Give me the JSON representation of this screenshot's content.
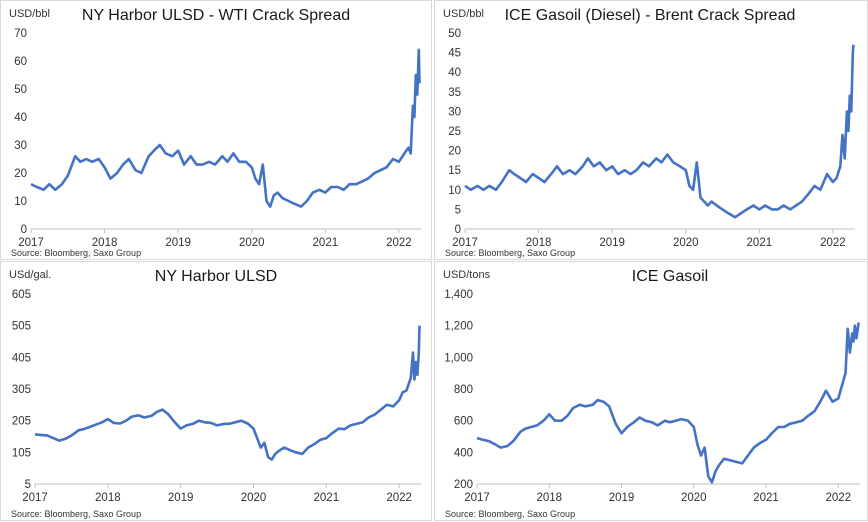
{
  "chart_data": [
    {
      "type": "line",
      "title": "NY Harbor ULSD - WTI Crack Spread",
      "unit_label": "USD/bbl",
      "source": "Source: Bloomberg, Saxo Group",
      "ylim": [
        0,
        70
      ],
      "yticks": [
        "0",
        "10",
        "20",
        "30",
        "40",
        "50",
        "60",
        "70"
      ],
      "xlim": [
        2017.0,
        2022.3
      ],
      "xticks": [
        "2017",
        "2018",
        "2019",
        "2020",
        "2021",
        "2022"
      ],
      "color": "#4472c4",
      "grid": false,
      "series": [
        {
          "x": [
            2017.0,
            2017.08,
            2017.17,
            2017.25,
            2017.33,
            2017.42,
            2017.5,
            2017.6,
            2017.67,
            2017.75,
            2017.83,
            2017.92,
            2018.0,
            2018.08,
            2018.17,
            2018.25,
            2018.33,
            2018.42,
            2018.5,
            2018.6,
            2018.67,
            2018.75,
            2018.83,
            2018.92,
            2019.0,
            2019.08,
            2019.17,
            2019.25,
            2019.33,
            2019.42,
            2019.5,
            2019.6,
            2019.67,
            2019.75,
            2019.83,
            2019.92,
            2020.0,
            2020.05,
            2020.1,
            2020.15,
            2020.2,
            2020.25,
            2020.3,
            2020.35,
            2020.42,
            2020.5,
            2020.58,
            2020.67,
            2020.75,
            2020.83,
            2020.92,
            2021.0,
            2021.08,
            2021.17,
            2021.25,
            2021.33,
            2021.42,
            2021.5,
            2021.58,
            2021.67,
            2021.75,
            2021.83,
            2021.92,
            2022.0,
            2022.05,
            2022.1,
            2022.13,
            2022.16,
            2022.19,
            2022.21,
            2022.23,
            2022.25,
            2022.27,
            2022.28
          ],
          "y": [
            16,
            15,
            14,
            16,
            14,
            16,
            19,
            26,
            24,
            25,
            24,
            25,
            22,
            18,
            20,
            23,
            25,
            21,
            20,
            26,
            28,
            30,
            27,
            26,
            28,
            23,
            26,
            23,
            23,
            24,
            23,
            26,
            24,
            27,
            24,
            24,
            22,
            18,
            16,
            23,
            10,
            8,
            12,
            13,
            11,
            10,
            9,
            8,
            10,
            13,
            14,
            13,
            15,
            15,
            14,
            16,
            16,
            17,
            18,
            20,
            21,
            22,
            25,
            24,
            26,
            28,
            29,
            27,
            44,
            40,
            55,
            48,
            64,
            52
          ]
        }
      ]
    },
    {
      "type": "line",
      "title": "ICE Gasoil (Diesel) - Brent Crack Spread",
      "unit_label": "USD/bbl",
      "source": "Source: Bloomberg, Saxo Group",
      "ylim": [
        0,
        50
      ],
      "yticks": [
        "0",
        "5",
        "10",
        "15",
        "20",
        "25",
        "30",
        "35",
        "40",
        "45",
        "50"
      ],
      "xlim": [
        2017.0,
        2022.3
      ],
      "xticks": [
        "2017",
        "2018",
        "2019",
        "2020",
        "2021",
        "2022"
      ],
      "color": "#4472c4",
      "grid": false,
      "series": [
        {
          "x": [
            2017.0,
            2017.08,
            2017.17,
            2017.25,
            2017.33,
            2017.42,
            2017.5,
            2017.6,
            2017.67,
            2017.75,
            2017.83,
            2017.92,
            2018.0,
            2018.08,
            2018.17,
            2018.25,
            2018.33,
            2018.42,
            2018.5,
            2018.6,
            2018.67,
            2018.75,
            2018.83,
            2018.92,
            2019.0,
            2019.08,
            2019.17,
            2019.25,
            2019.33,
            2019.42,
            2019.5,
            2019.6,
            2019.67,
            2019.75,
            2019.83,
            2019.92,
            2020.0,
            2020.05,
            2020.1,
            2020.15,
            2020.2,
            2020.25,
            2020.3,
            2020.35,
            2020.42,
            2020.5,
            2020.58,
            2020.67,
            2020.75,
            2020.83,
            2020.92,
            2021.0,
            2021.08,
            2021.17,
            2021.25,
            2021.33,
            2021.42,
            2021.5,
            2021.58,
            2021.67,
            2021.75,
            2021.83,
            2021.92,
            2022.0,
            2022.05,
            2022.1,
            2022.13,
            2022.16,
            2022.19,
            2022.21,
            2022.23,
            2022.25,
            2022.27,
            2022.28
          ],
          "y": [
            11,
            10,
            11,
            10,
            11,
            10,
            12,
            15,
            14,
            13,
            12,
            14,
            13,
            12,
            14,
            16,
            14,
            15,
            14,
            16,
            18,
            16,
            17,
            15,
            16,
            14,
            15,
            14,
            15,
            17,
            16,
            18,
            17,
            19,
            17,
            16,
            15,
            11,
            10,
            17,
            8,
            7,
            6,
            7,
            6,
            5,
            4,
            3,
            4,
            5,
            6,
            5,
            6,
            5,
            5,
            6,
            5,
            6,
            7,
            9,
            11,
            10,
            14,
            12,
            13,
            16,
            24,
            18,
            30,
            25,
            34,
            30,
            45,
            47
          ]
        }
      ]
    },
    {
      "type": "line",
      "title": "NY Harbor ULSD",
      "unit_label": "USd/gal.",
      "source": "Source: Bloomberg, Saxo Group",
      "ylim": [
        5,
        605
      ],
      "yticks": [
        "5",
        "105",
        "205",
        "305",
        "405",
        "505",
        "605"
      ],
      "xlim": [
        2017.0,
        2022.3
      ],
      "xticks": [
        "2017",
        "2018",
        "2019",
        "2020",
        "2021",
        "2022"
      ],
      "color": "#4472c4",
      "grid": false,
      "series": [
        {
          "x": [
            2017.0,
            2017.08,
            2017.17,
            2017.25,
            2017.33,
            2017.42,
            2017.5,
            2017.6,
            2017.67,
            2017.75,
            2017.83,
            2017.92,
            2018.0,
            2018.08,
            2018.17,
            2018.25,
            2018.33,
            2018.42,
            2018.5,
            2018.6,
            2018.67,
            2018.75,
            2018.83,
            2018.92,
            2019.0,
            2019.08,
            2019.17,
            2019.25,
            2019.33,
            2019.42,
            2019.5,
            2019.6,
            2019.67,
            2019.75,
            2019.83,
            2019.92,
            2020.0,
            2020.05,
            2020.1,
            2020.15,
            2020.2,
            2020.25,
            2020.3,
            2020.35,
            2020.42,
            2020.5,
            2020.58,
            2020.67,
            2020.75,
            2020.83,
            2020.92,
            2021.0,
            2021.08,
            2021.17,
            2021.25,
            2021.33,
            2021.42,
            2021.5,
            2021.58,
            2021.67,
            2021.75,
            2021.83,
            2021.92,
            2022.0,
            2022.05,
            2022.1,
            2022.13,
            2022.16,
            2022.19,
            2022.21,
            2022.23,
            2022.25,
            2022.27,
            2022.28
          ],
          "y": [
            162,
            160,
            158,
            150,
            142,
            148,
            158,
            175,
            178,
            185,
            192,
            200,
            210,
            198,
            196,
            205,
            218,
            222,
            215,
            220,
            232,
            240,
            225,
            200,
            180,
            190,
            195,
            205,
            200,
            198,
            190,
            195,
            195,
            200,
            205,
            196,
            180,
            150,
            120,
            135,
            90,
            82,
            100,
            110,
            120,
            112,
            105,
            100,
            120,
            130,
            145,
            150,
            165,
            180,
            178,
            190,
            195,
            200,
            215,
            225,
            240,
            255,
            250,
            270,
            295,
            300,
            320,
            340,
            420,
            335,
            390,
            350,
            420,
            505
          ]
        }
      ]
    },
    {
      "type": "line",
      "title": "ICE Gasoil",
      "unit_label": "USD/tons",
      "source": "Source: Bloomberg, Saxo Group",
      "ylim": [
        200,
        1400
      ],
      "yticks": [
        "200",
        "400",
        "600",
        "800",
        "1,000",
        "1,200",
        "1,400"
      ],
      "xlim": [
        2017.0,
        2022.3
      ],
      "xticks": [
        "2017",
        "2018",
        "2019",
        "2020",
        "2021",
        "2022"
      ],
      "color": "#4472c4",
      "grid": false,
      "series": [
        {
          "x": [
            2017.0,
            2017.08,
            2017.17,
            2017.25,
            2017.33,
            2017.42,
            2017.5,
            2017.6,
            2017.67,
            2017.75,
            2017.83,
            2017.92,
            2018.0,
            2018.08,
            2018.17,
            2018.25,
            2018.33,
            2018.42,
            2018.5,
            2018.6,
            2018.67,
            2018.75,
            2018.83,
            2018.92,
            2019.0,
            2019.08,
            2019.17,
            2019.25,
            2019.33,
            2019.42,
            2019.5,
            2019.6,
            2019.67,
            2019.75,
            2019.83,
            2019.92,
            2020.0,
            2020.05,
            2020.1,
            2020.15,
            2020.2,
            2020.25,
            2020.3,
            2020.35,
            2020.42,
            2020.5,
            2020.58,
            2020.67,
            2020.75,
            2020.83,
            2020.92,
            2021.0,
            2021.08,
            2021.17,
            2021.25,
            2021.33,
            2021.42,
            2021.5,
            2021.58,
            2021.67,
            2021.75,
            2021.83,
            2021.92,
            2022.0,
            2022.05,
            2022.1,
            2022.13,
            2022.16,
            2022.19,
            2022.21,
            2022.23,
            2022.25,
            2022.27,
            2022.28
          ],
          "y": [
            490,
            480,
            470,
            450,
            430,
            440,
            470,
            530,
            550,
            560,
            570,
            600,
            640,
            600,
            600,
            630,
            680,
            700,
            690,
            700,
            730,
            720,
            690,
            580,
            520,
            560,
            590,
            620,
            600,
            590,
            570,
            600,
            590,
            600,
            610,
            600,
            560,
            450,
            380,
            430,
            250,
            210,
            280,
            320,
            360,
            350,
            340,
            330,
            380,
            430,
            460,
            480,
            520,
            560,
            560,
            580,
            590,
            600,
            630,
            660,
            720,
            790,
            720,
            740,
            820,
            900,
            1180,
            1030,
            1150,
            1100,
            1200,
            1120,
            1180,
            1220
          ]
        }
      ]
    }
  ]
}
